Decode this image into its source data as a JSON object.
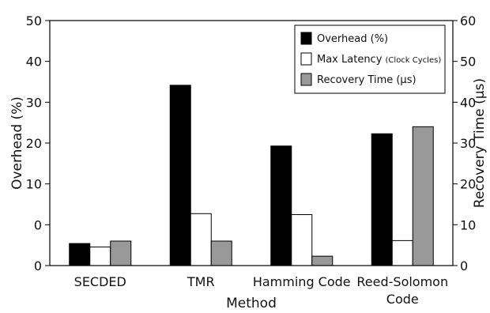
{
  "chart_data": {
    "type": "bar",
    "categories": [
      "SECDED",
      "TMR",
      "Hamming Code",
      "Reed-Solomon Code"
    ],
    "category_lines": [
      [
        "SECDED"
      ],
      [
        "TMR"
      ],
      [
        "Hamming Code"
      ],
      [
        "Reed-Solomon",
        "Code"
      ]
    ],
    "series": [
      {
        "name": "Overhead (%)",
        "axis": "left",
        "color": "#000000",
        "values": [
          4.5,
          36.8,
          24.4,
          26.9
        ]
      },
      {
        "name": "Max Latency (Clock Cycles)",
        "axis": "left",
        "color": "#ffffff",
        "values": [
          3.8,
          10.6,
          10.4,
          5.1
        ]
      },
      {
        "name": "Recovery Time (µs)",
        "axis": "right",
        "color": "#999999",
        "values": [
          6.0,
          6.0,
          2.3,
          34.0
        ]
      }
    ],
    "legend": [
      {
        "main": "Overhead (%)",
        "small": ""
      },
      {
        "main": "Max Latency ",
        "small": "(Clock Cycles)"
      },
      {
        "main": "Recovery Time (µs)",
        "small": ""
      }
    ],
    "xlabel": "Method",
    "ylabel_left": "Overhead (%)",
    "ylabel_right": "Recovery Time (µs)",
    "ylim_left": [
      0,
      50
    ],
    "ylim_right": [
      0,
      60
    ],
    "yticks_left": [
      "0",
      "0",
      "10",
      "20",
      "30",
      "40",
      "50"
    ],
    "yticks_right": [
      "0",
      "10",
      "20",
      "30",
      "40",
      "50",
      "60"
    ],
    "grid": false,
    "legend_position": "top-right"
  }
}
